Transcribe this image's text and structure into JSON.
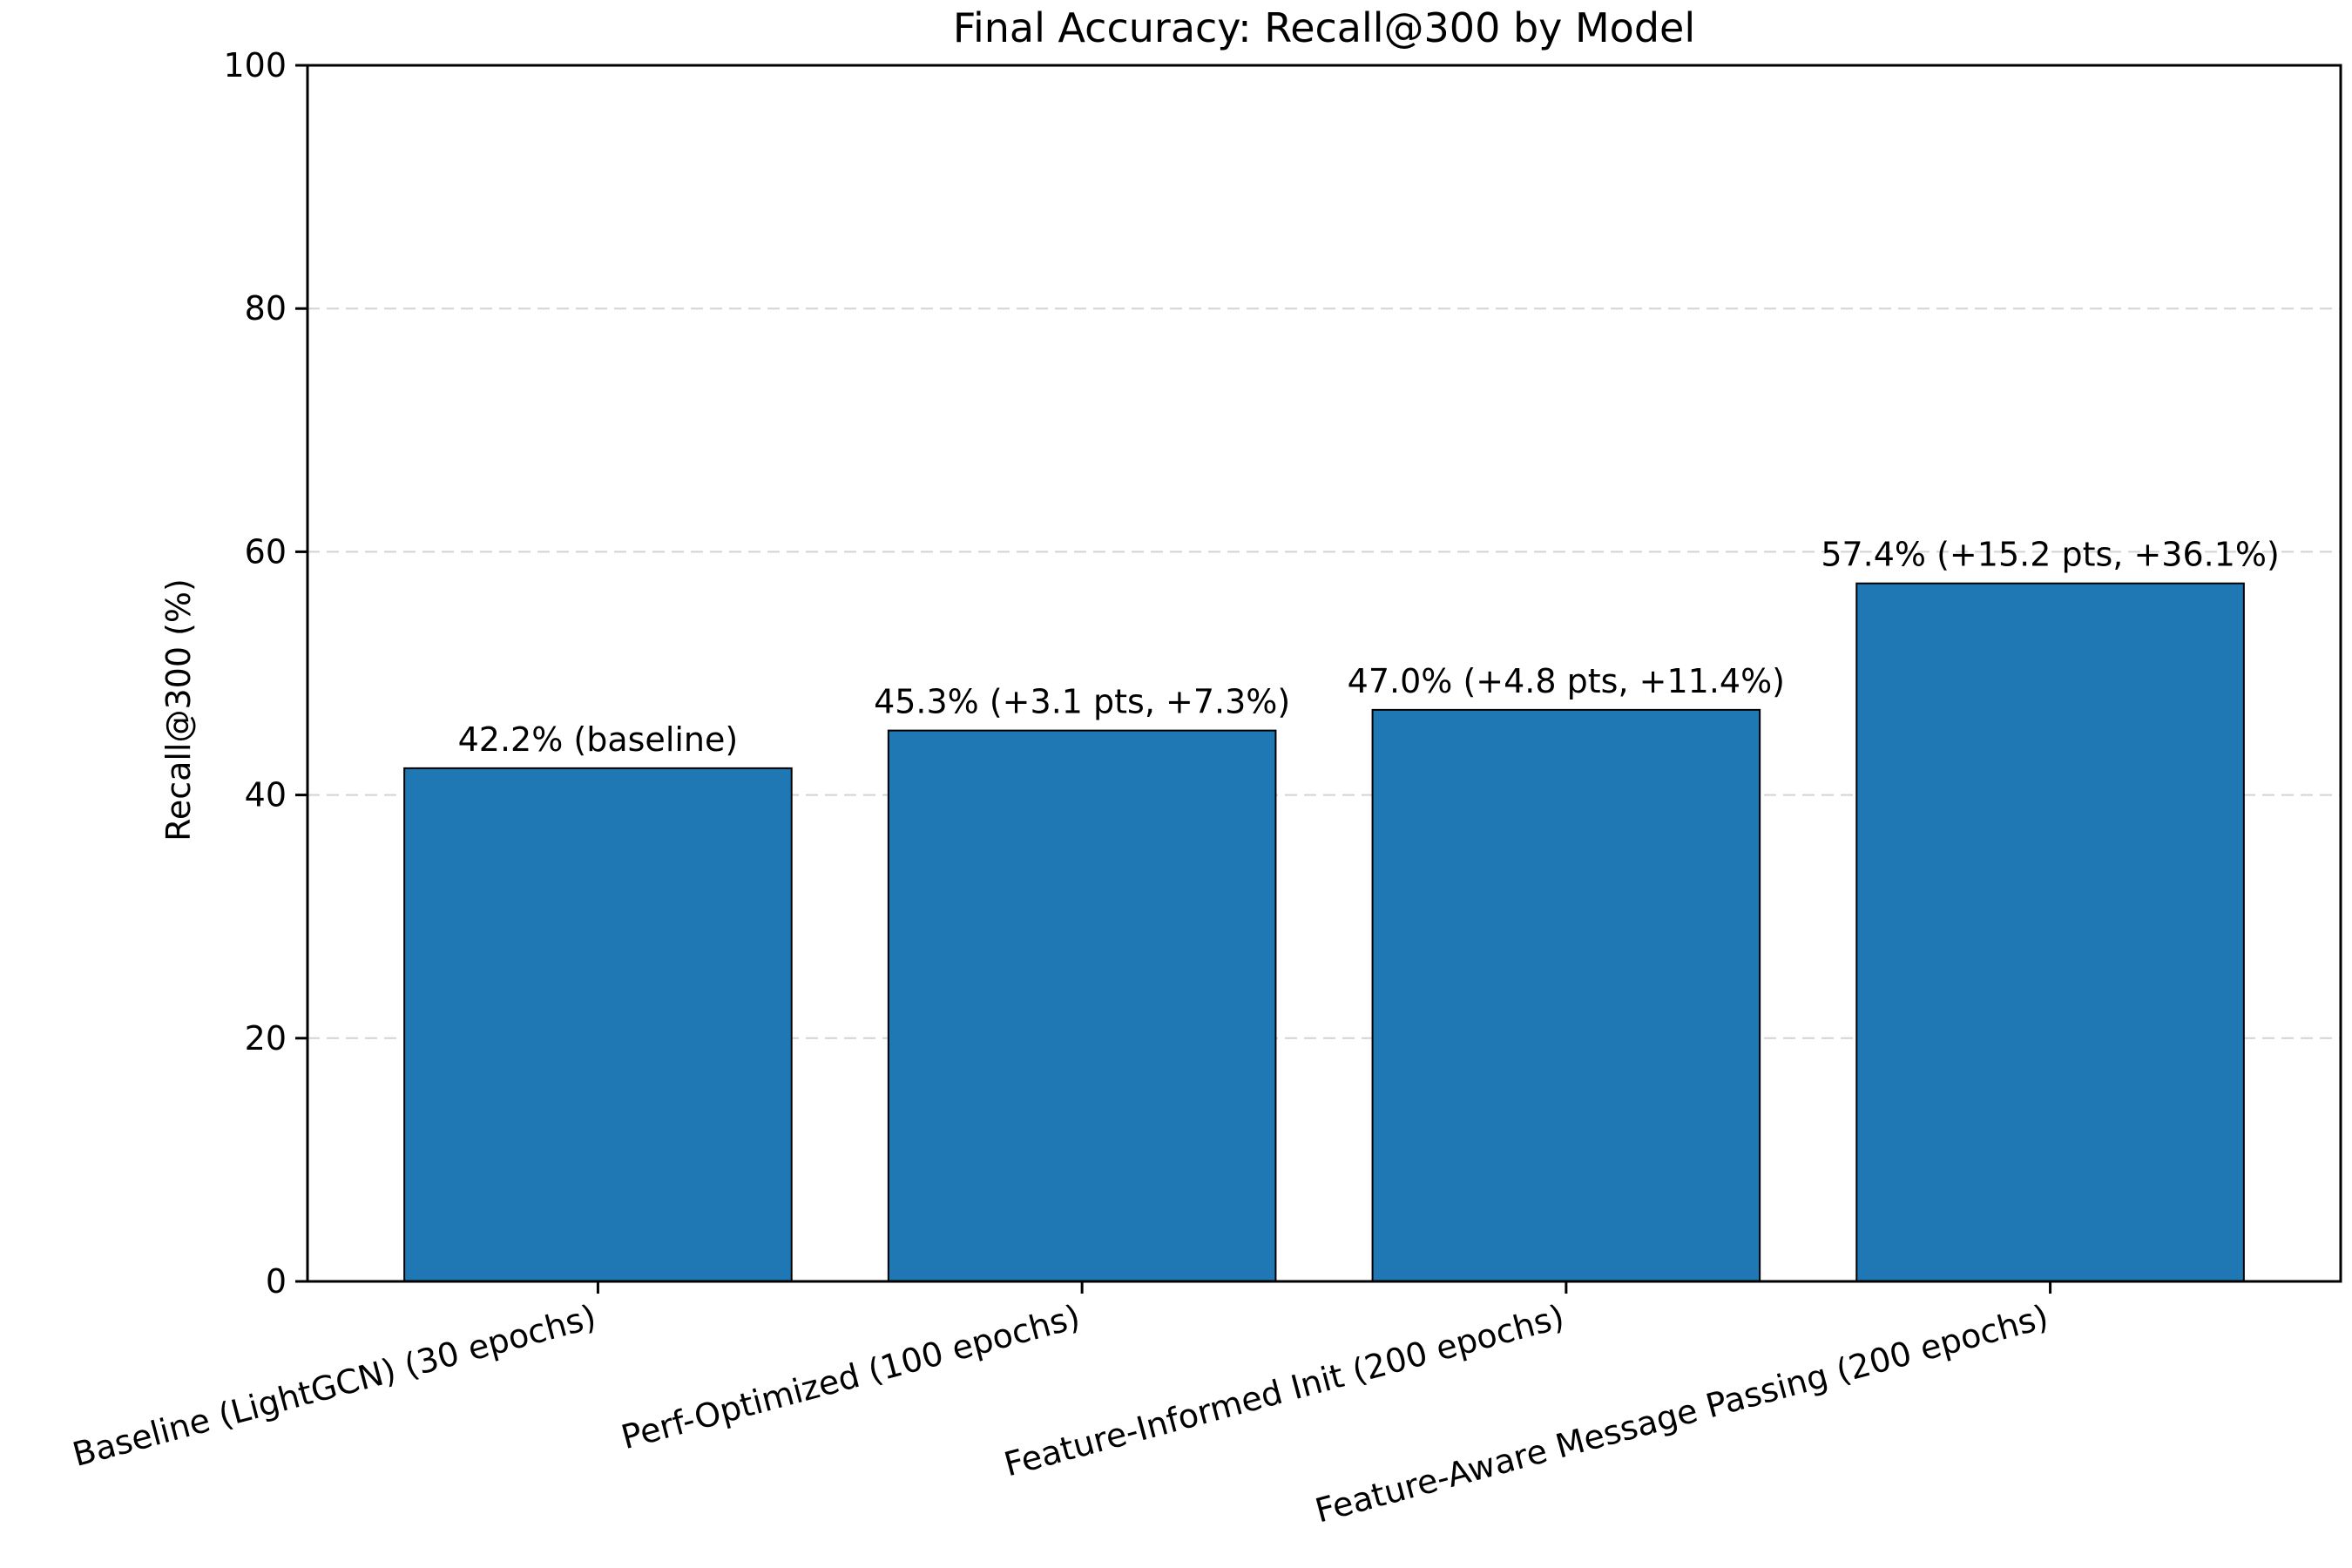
{
  "chart_data": {
    "type": "bar",
    "title": "Final Accuracy: Recall@300 by Model",
    "xlabel": "",
    "ylabel": "Recall@300 (%)",
    "ylim": [
      0,
      100
    ],
    "yticks": [
      0,
      20,
      40,
      60,
      80,
      100
    ],
    "grid": "horizontal dashed at major ticks",
    "categories": [
      "Baseline (LightGCN) (30 epochs)",
      "Perf-Optimized (100 epochs)",
      "Feature-Informed Init (200 epochs)",
      "Feature-Aware Message Passing (200 epochs)"
    ],
    "values": [
      42.2,
      45.3,
      47.0,
      57.4
    ],
    "data_labels": [
      "42.2% (baseline)",
      "45.3% (+3.1 pts, +7.3%)",
      "47.0% (+4.8 pts, +11.4%)",
      "57.4% (+15.2 pts, +36.1%)"
    ],
    "bar_color": "#1f77b4",
    "edge_color": "#000000"
  }
}
